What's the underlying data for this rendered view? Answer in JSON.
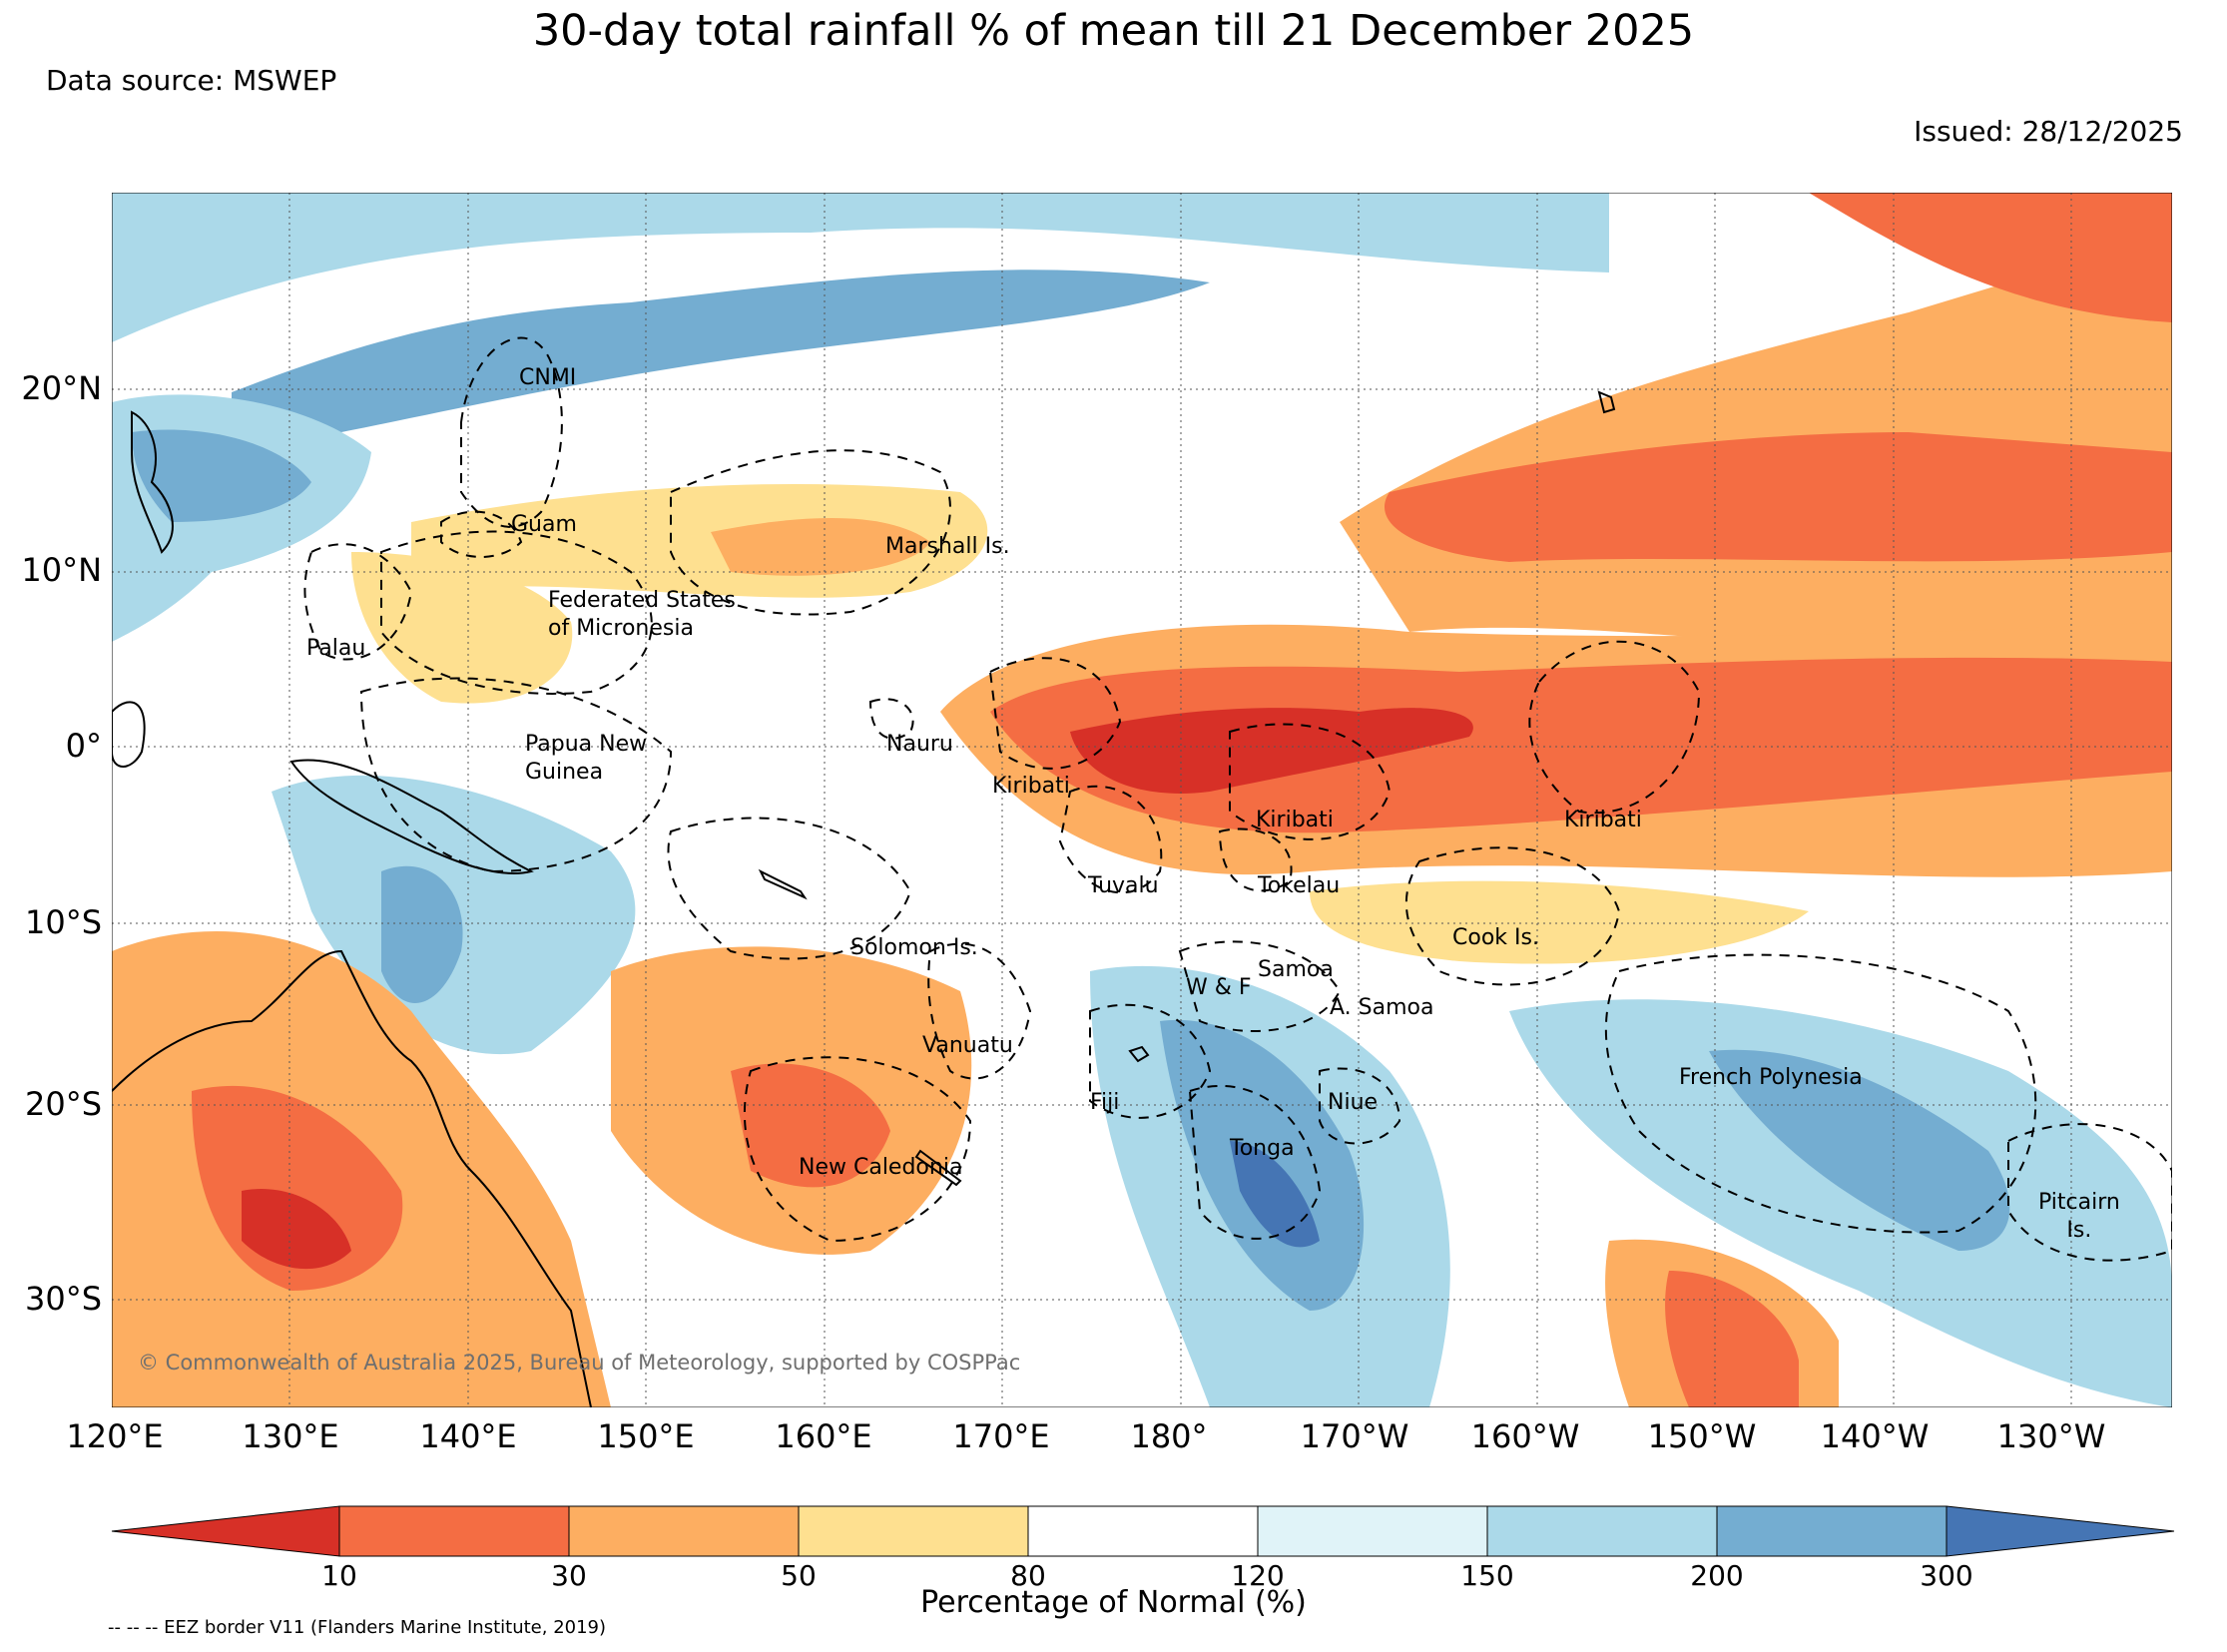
{
  "header": {
    "title": "30-day total rainfall % of mean till 21 December 2025",
    "source": "Data source: MSWEP",
    "issued": "Issued: 28/12/2025"
  },
  "axes": {
    "lat_labels": [
      "20°N",
      "10°N",
      "0°",
      "10°S",
      "20°S",
      "30°S"
    ],
    "lon_labels": [
      "120°E",
      "130°E",
      "140°E",
      "150°E",
      "160°E",
      "170°E",
      "180°",
      "170°W",
      "160°W",
      "150°W",
      "140°W",
      "130°W"
    ]
  },
  "map_labels": {
    "cnmi": "CNMI",
    "guam": "Guam",
    "marshall": "Marshall Is.",
    "fsm": "Federated States\nof Micronesia",
    "palau": "Palau",
    "png": "Papua New\nGuinea",
    "nauru": "Nauru",
    "kiribati_w": "Kiribati",
    "kiribati_c": "Kiribati",
    "kiribati_e": "Kiribati",
    "tuvalu": "Tuvalu",
    "tokelau": "Tokelau",
    "cook": "Cook Is.",
    "solomon": "Solomon Is.",
    "samoa": "Samoa",
    "wf": "W & F",
    "asamoa": "A. Samoa",
    "vanuatu": "Vanuatu",
    "fiji": "Fiji",
    "niue": "Niue",
    "tonga": "Tonga",
    "newcal": "New Caledonia",
    "fp": "French Polynesia",
    "pitcairn": "Pitcairn\nIs."
  },
  "colorbar": {
    "title": "Percentage of Normal (%)",
    "ticks": [
      "10",
      "30",
      "50",
      "80",
      "120",
      "150",
      "200",
      "300"
    ],
    "colors": [
      "#d73027",
      "#f46d43",
      "#fdae61",
      "#fee090",
      "#ffffff",
      "#e0f3f8",
      "#abd9e9",
      "#74add1",
      "#4575b4"
    ]
  },
  "footer": {
    "copyright": "© Commonwealth of Australia 2025, Bureau of Meteorology, supported by COSPPac",
    "eez": "-- -- -- EEZ border V11 (Flanders Marine Institute, 2019)"
  }
}
